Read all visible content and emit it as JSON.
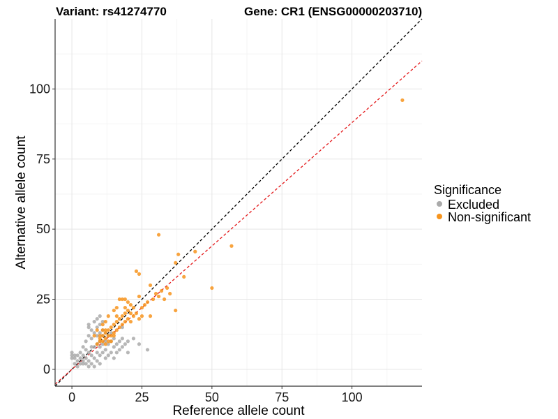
{
  "title_left": "Variant: rs41274770",
  "title_right": "Gene: CR1 (ENSG00000203710)",
  "chart_data": {
    "type": "scatter",
    "xlabel": "Reference allele count",
    "ylabel": "Alternative allele count",
    "xlim": [
      -6,
      125
    ],
    "ylim": [
      -6,
      125
    ],
    "xticks": [
      0,
      25,
      50,
      75,
      100
    ],
    "yticks": [
      0,
      25,
      50,
      75,
      100
    ],
    "grid": true,
    "reference_lines": [
      {
        "name": "identity",
        "slope": 1.0,
        "intercept": 0,
        "color": "#000000",
        "dash": true
      },
      {
        "name": "fitted",
        "slope": 0.88,
        "intercept": 0,
        "color": "#e41a1c",
        "dash": true
      }
    ],
    "legend": {
      "title": "Significance",
      "position": "right",
      "entries": [
        {
          "label": "Excluded",
          "color": "#aaaaaa"
        },
        {
          "label": "Non-significant",
          "color": "#f7941d"
        }
      ]
    },
    "series": [
      {
        "name": "Excluded",
        "color": "#aaaaaa",
        "points": [
          [
            0,
            4
          ],
          [
            0,
            5
          ],
          [
            0,
            6
          ],
          [
            1,
            2
          ],
          [
            1,
            4
          ],
          [
            1,
            5
          ],
          [
            2,
            1
          ],
          [
            2,
            3
          ],
          [
            2,
            5
          ],
          [
            3,
            2
          ],
          [
            3,
            4
          ],
          [
            3,
            6
          ],
          [
            4,
            2
          ],
          [
            4,
            3
          ],
          [
            4,
            5
          ],
          [
            4,
            8
          ],
          [
            5,
            2
          ],
          [
            5,
            4
          ],
          [
            5,
            7
          ],
          [
            5,
            10
          ],
          [
            6,
            1
          ],
          [
            6,
            3
          ],
          [
            6,
            6
          ],
          [
            6,
            12
          ],
          [
            6,
            15
          ],
          [
            6,
            16
          ],
          [
            7,
            2
          ],
          [
            7,
            5
          ],
          [
            7,
            8
          ],
          [
            7,
            11
          ],
          [
            7,
            14
          ],
          [
            8,
            1
          ],
          [
            8,
            4
          ],
          [
            8,
            8
          ],
          [
            8,
            13
          ],
          [
            8,
            17
          ],
          [
            9,
            3
          ],
          [
            9,
            6
          ],
          [
            9,
            9
          ],
          [
            9,
            12
          ],
          [
            9,
            15
          ],
          [
            10,
            2
          ],
          [
            10,
            5
          ],
          [
            10,
            8
          ],
          [
            10,
            10
          ],
          [
            10,
            13
          ],
          [
            10,
            16
          ],
          [
            10,
            19
          ],
          [
            11,
            6
          ],
          [
            11,
            9
          ],
          [
            11,
            12
          ],
          [
            11,
            14
          ],
          [
            12,
            4
          ],
          [
            12,
            7
          ],
          [
            12,
            10
          ],
          [
            12,
            13
          ],
          [
            13,
            5
          ],
          [
            13,
            9
          ],
          [
            13,
            12
          ],
          [
            14,
            6
          ],
          [
            14,
            10
          ],
          [
            15,
            4
          ],
          [
            15,
            8
          ],
          [
            15,
            11
          ],
          [
            16,
            6
          ],
          [
            16,
            9
          ],
          [
            17,
            7
          ],
          [
            17,
            10
          ],
          [
            18,
            8
          ],
          [
            18,
            11
          ],
          [
            19,
            9
          ],
          [
            20,
            10
          ],
          [
            22,
            11
          ],
          [
            24,
            9
          ],
          [
            27,
            7
          ],
          [
            20,
            6
          ],
          [
            18,
            15
          ],
          [
            14,
            13
          ],
          [
            11,
            17
          ],
          [
            9,
            18
          ]
        ]
      },
      {
        "name": "Non-significant",
        "color": "#f7941d",
        "points": [
          [
            8,
            12
          ],
          [
            9,
            9
          ],
          [
            9,
            14
          ],
          [
            10,
            10
          ],
          [
            10,
            11
          ],
          [
            10,
            12
          ],
          [
            11,
            10
          ],
          [
            11,
            12
          ],
          [
            11,
            14
          ],
          [
            11,
            16
          ],
          [
            12,
            9
          ],
          [
            12,
            11
          ],
          [
            12,
            13
          ],
          [
            12,
            14
          ],
          [
            13,
            10
          ],
          [
            13,
            12
          ],
          [
            13,
            14
          ],
          [
            13,
            19
          ],
          [
            14,
            12
          ],
          [
            14,
            15
          ],
          [
            15,
            13
          ],
          [
            15,
            16
          ],
          [
            15,
            21
          ],
          [
            16,
            14
          ],
          [
            16,
            17
          ],
          [
            16,
            22
          ],
          [
            17,
            15
          ],
          [
            17,
            18
          ],
          [
            17,
            25
          ],
          [
            18,
            16
          ],
          [
            18,
            19
          ],
          [
            18,
            25
          ],
          [
            19,
            17
          ],
          [
            19,
            20
          ],
          [
            19,
            22
          ],
          [
            19,
            25
          ],
          [
            20,
            18
          ],
          [
            20,
            21
          ],
          [
            20,
            24
          ],
          [
            21,
            17
          ],
          [
            21,
            20
          ],
          [
            21,
            23
          ],
          [
            22,
            19
          ],
          [
            22,
            22
          ],
          [
            23,
            20
          ],
          [
            23,
            35
          ],
          [
            24,
            18
          ],
          [
            24,
            34
          ],
          [
            24,
            26
          ],
          [
            25,
            19
          ],
          [
            25,
            22
          ],
          [
            26,
            23
          ],
          [
            27,
            24
          ],
          [
            28,
            30
          ],
          [
            28,
            19
          ],
          [
            29,
            25
          ],
          [
            30,
            27
          ],
          [
            31,
            48
          ],
          [
            31,
            26
          ],
          [
            32,
            28
          ],
          [
            33,
            25
          ],
          [
            34,
            29
          ],
          [
            35,
            27
          ],
          [
            37,
            21
          ],
          [
            37,
            38
          ],
          [
            38,
            41
          ],
          [
            40,
            33
          ],
          [
            44,
            42
          ],
          [
            50,
            29
          ],
          [
            57,
            44
          ],
          [
            118,
            96
          ],
          [
            15,
            12
          ],
          [
            14,
            10
          ],
          [
            16,
            19
          ],
          [
            12,
            17
          ]
        ]
      }
    ]
  }
}
